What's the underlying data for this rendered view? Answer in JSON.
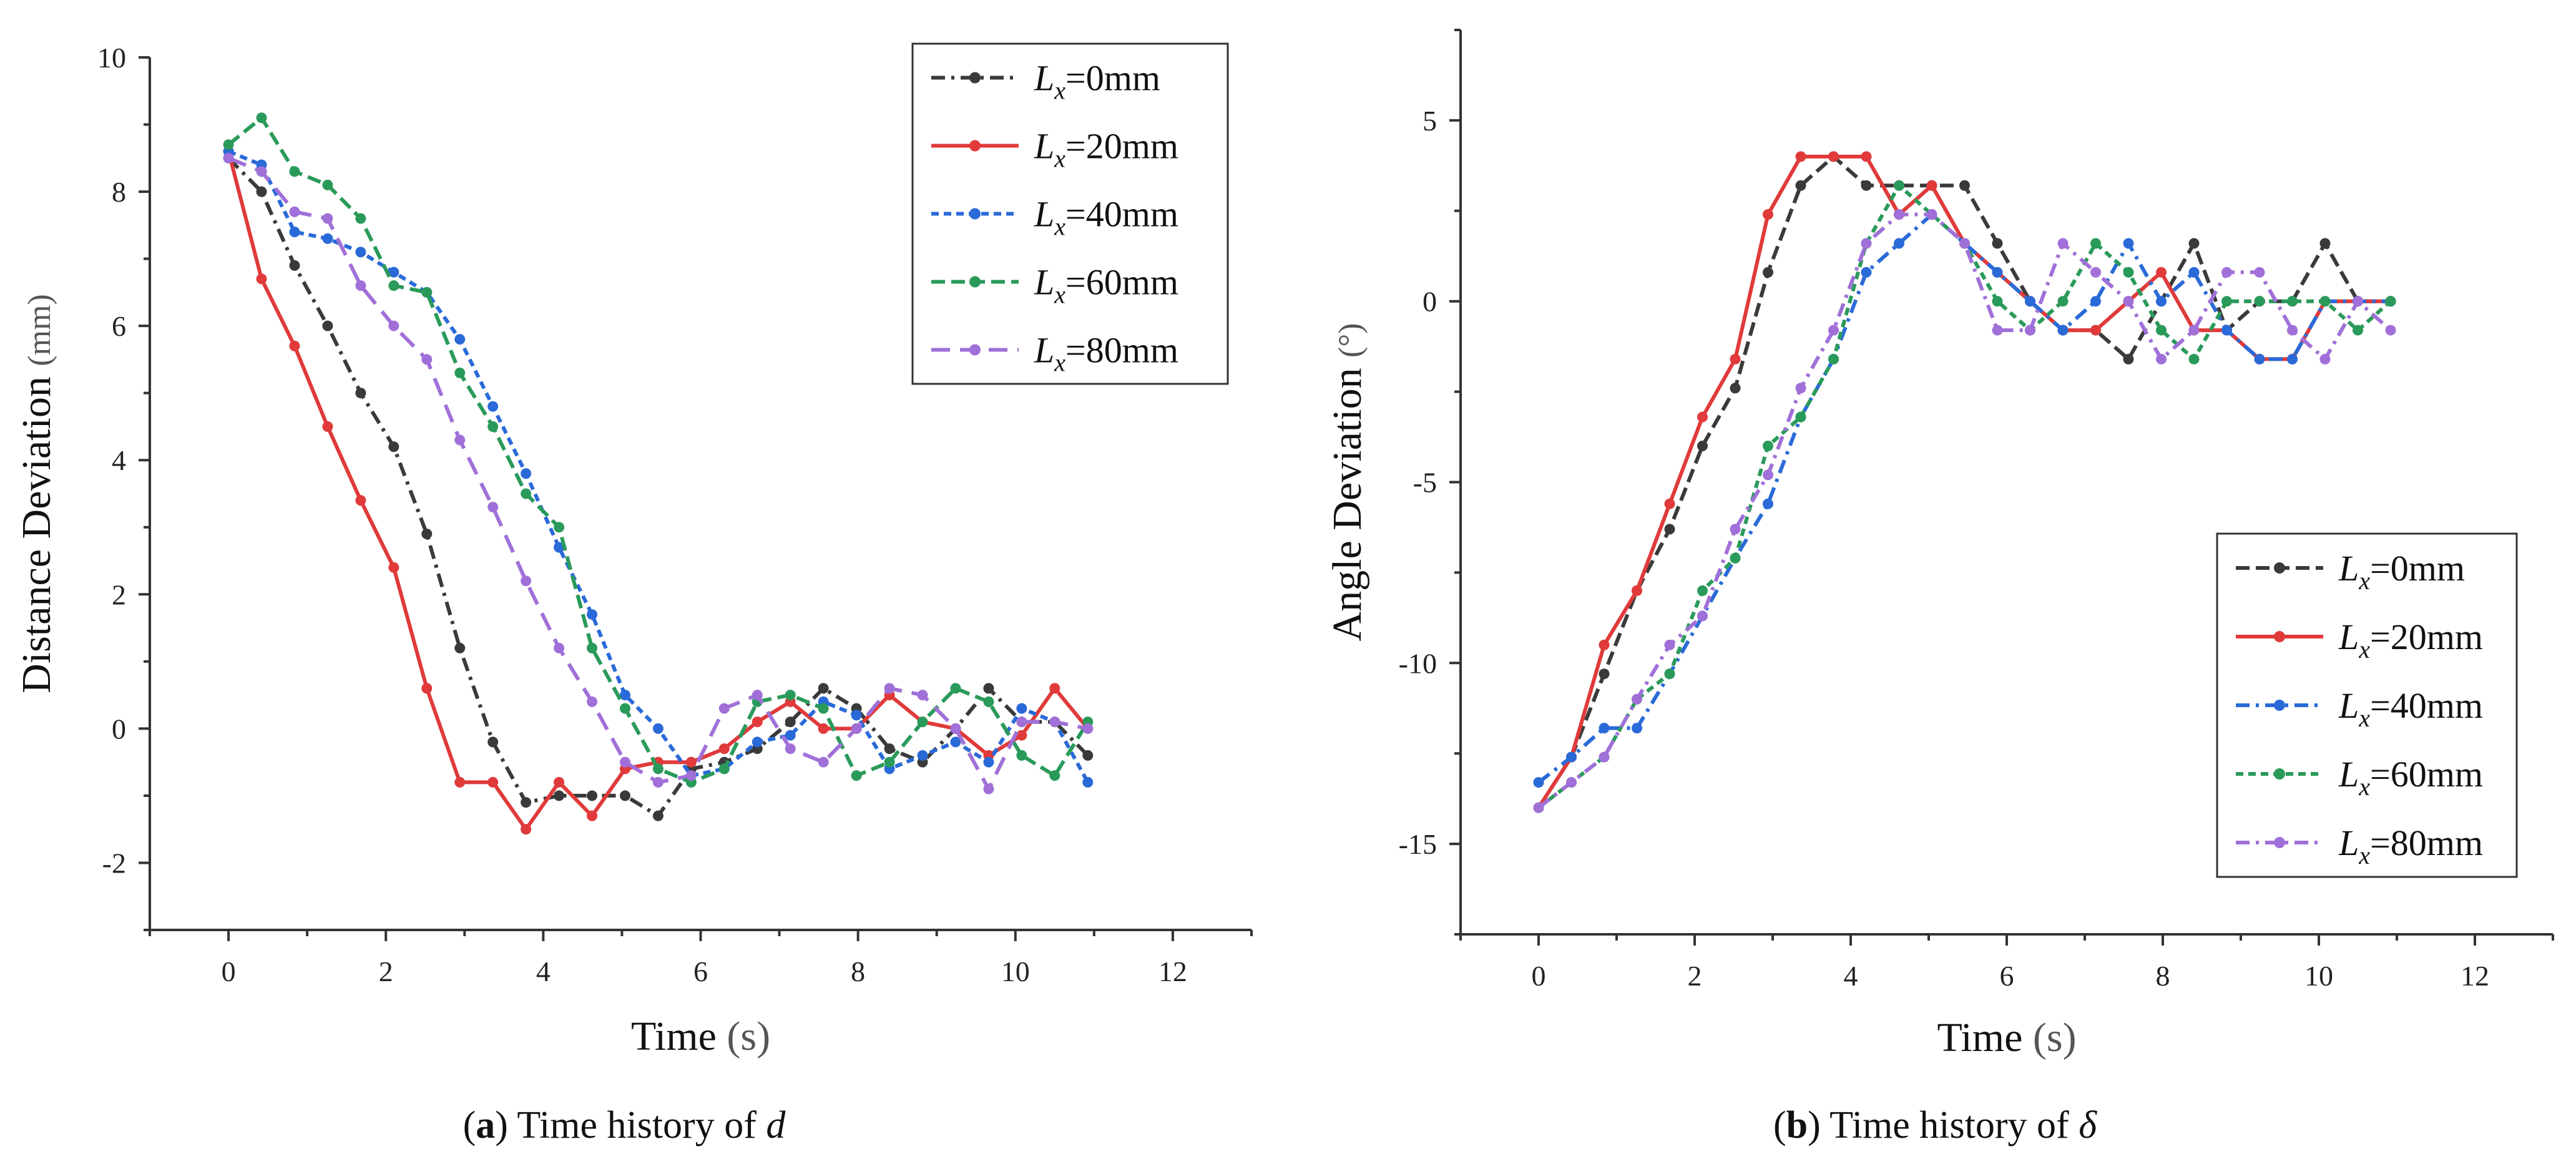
{
  "chart_data": [
    {
      "type": "line",
      "caption": {
        "letter": "a",
        "rest": " Time history of ",
        "symbol": "d"
      },
      "xlabel": "Time",
      "xunit": "(s)",
      "ylabel": "Distance Deviation",
      "yunit": "(mm)",
      "xlim": [
        -1,
        13
      ],
      "ylim": [
        -3,
        10
      ],
      "xticks": [
        0,
        2,
        4,
        6,
        8,
        10,
        12
      ],
      "yticks": [
        -2,
        0,
        2,
        4,
        6,
        8,
        10
      ],
      "legend": "top-right",
      "series": [
        {
          "name": "Lx=0mm",
          "sub": "x",
          "value_label": "=0mm",
          "color": "#3a3a3a",
          "dash": "22,10,5,10",
          "x": [
            0,
            0.42,
            0.84,
            1.26,
            1.68,
            2.1,
            2.52,
            2.94,
            3.36,
            3.78,
            4.2,
            4.62,
            5.04,
            5.46,
            5.88,
            6.3,
            6.72,
            7.14,
            7.56,
            7.98,
            8.4,
            8.82,
            9.24,
            9.66,
            10.08,
            10.5,
            10.92
          ],
          "y": [
            8.5,
            8.0,
            6.9,
            6.0,
            5.0,
            4.2,
            2.9,
            1.2,
            -0.2,
            -1.1,
            -1.0,
            -1.0,
            -1.0,
            -1.3,
            -0.6,
            -0.5,
            -0.3,
            0.1,
            0.6,
            0.3,
            -0.3,
            -0.5,
            0.0,
            0.6,
            0.1,
            0.1,
            -0.4
          ]
        },
        {
          "name": "Lx=20mm",
          "sub": "x",
          "value_label": "=20mm",
          "color": "#e03a3a",
          "dash": "",
          "x": [
            0,
            0.42,
            0.84,
            1.26,
            1.68,
            2.1,
            2.52,
            2.94,
            3.36,
            3.78,
            4.2,
            4.62,
            5.04,
            5.46,
            5.88,
            6.3,
            6.72,
            7.14,
            7.56,
            7.98,
            8.4,
            8.82,
            9.24,
            9.66,
            10.08,
            10.5,
            10.92
          ],
          "y": [
            8.6,
            6.7,
            5.7,
            4.5,
            3.4,
            2.4,
            0.6,
            -0.8,
            -0.8,
            -1.5,
            -0.8,
            -1.3,
            -0.6,
            -0.5,
            -0.5,
            -0.3,
            0.1,
            0.4,
            0.0,
            0.0,
            0.5,
            0.1,
            0.0,
            -0.4,
            -0.1,
            0.6,
            0.0
          ]
        },
        {
          "name": "Lx=40mm",
          "sub": "x",
          "value_label": "=40mm",
          "color": "#2a6ad8",
          "dash": "12,8",
          "x": [
            0,
            0.42,
            0.84,
            1.26,
            1.68,
            2.1,
            2.52,
            2.94,
            3.36,
            3.78,
            4.2,
            4.62,
            5.04,
            5.46,
            5.88,
            6.3,
            6.72,
            7.14,
            7.56,
            7.98,
            8.4,
            8.82,
            9.24,
            9.66,
            10.08,
            10.5,
            10.92
          ],
          "y": [
            8.6,
            8.4,
            7.4,
            7.3,
            7.1,
            6.8,
            6.5,
            5.8,
            4.8,
            3.8,
            2.7,
            1.7,
            0.5,
            0.0,
            -0.7,
            -0.6,
            -0.2,
            -0.1,
            0.4,
            0.2,
            -0.6,
            -0.4,
            -0.2,
            -0.5,
            0.3,
            0.1,
            -0.8
          ]
        },
        {
          "name": "Lx=60mm",
          "sub": "x",
          "value_label": "=60mm",
          "color": "#2a9a5a",
          "dash": "22,10",
          "x": [
            0,
            0.42,
            0.84,
            1.26,
            1.68,
            2.1,
            2.52,
            2.94,
            3.36,
            3.78,
            4.2,
            4.62,
            5.04,
            5.46,
            5.88,
            6.3,
            6.72,
            7.14,
            7.56,
            7.98,
            8.4,
            8.82,
            9.24,
            9.66,
            10.08,
            10.5,
            10.92
          ],
          "y": [
            8.7,
            9.1,
            8.3,
            8.1,
            7.6,
            6.6,
            6.5,
            5.3,
            4.5,
            3.5,
            3.0,
            1.2,
            0.3,
            -0.6,
            -0.8,
            -0.6,
            0.4,
            0.5,
            0.3,
            -0.7,
            -0.5,
            0.1,
            0.6,
            0.4,
            -0.4,
            -0.7,
            0.1
          ]
        },
        {
          "name": "Lx=80mm",
          "sub": "x",
          "value_label": "=80mm",
          "color": "#a070d8",
          "dash": "30,16",
          "x": [
            0,
            0.42,
            0.84,
            1.26,
            1.68,
            2.1,
            2.52,
            2.94,
            3.36,
            3.78,
            4.2,
            4.62,
            5.04,
            5.46,
            5.88,
            6.3,
            6.72,
            7.14,
            7.56,
            7.98,
            8.4,
            8.82,
            9.24,
            9.66,
            10.08,
            10.5,
            10.92
          ],
          "y": [
            8.5,
            8.3,
            7.7,
            7.6,
            6.6,
            6.0,
            5.5,
            4.3,
            3.3,
            2.2,
            1.2,
            0.4,
            -0.5,
            -0.8,
            -0.7,
            0.3,
            0.5,
            -0.3,
            -0.5,
            0.0,
            0.6,
            0.5,
            0.0,
            -0.9,
            0.1,
            0.1,
            0.0
          ]
        }
      ]
    },
    {
      "type": "line",
      "caption": {
        "letter": "b",
        "rest": " Time history of ",
        "symbol": "δ"
      },
      "xlabel": "Time",
      "xunit": "(s)",
      "ylabel": "Angle Deviation",
      "yunit": "(°)",
      "xlim": [
        -1,
        13
      ],
      "ylim": [
        -17.5,
        7.5
      ],
      "xticks": [
        0,
        2,
        4,
        6,
        8,
        10,
        12
      ],
      "yticks": [
        -15,
        -10,
        -5,
        0,
        5
      ],
      "legend": "bottom-right",
      "series": [
        {
          "name": "Lx=0mm",
          "sub": "x",
          "value_label": "=0mm",
          "color": "#3a3a3a",
          "dash": "22,10",
          "x": [
            0,
            0.42,
            0.84,
            1.26,
            1.68,
            2.1,
            2.52,
            2.94,
            3.36,
            3.78,
            4.2,
            4.62,
            5.04,
            5.46,
            5.88,
            6.3,
            6.72,
            7.14,
            7.56,
            7.98,
            8.4,
            8.82,
            9.24,
            9.66,
            10.08,
            10.5,
            10.92
          ],
          "y": [
            -14.0,
            -12.6,
            -10.3,
            -8.0,
            -6.3,
            -4.0,
            -2.4,
            0.8,
            3.2,
            4.0,
            3.2,
            3.2,
            3.2,
            3.2,
            1.6,
            0.0,
            -0.8,
            -0.8,
            -1.6,
            0.0,
            1.6,
            -0.8,
            0.0,
            0.0,
            1.6,
            0.0,
            0.0
          ]
        },
        {
          "name": "Lx=20mm",
          "sub": "x",
          "value_label": "=20mm",
          "color": "#e03a3a",
          "dash": "",
          "x": [
            0,
            0.42,
            0.84,
            1.26,
            1.68,
            2.1,
            2.52,
            2.94,
            3.36,
            3.78,
            4.2,
            4.62,
            5.04,
            5.46,
            5.88,
            6.3,
            6.72,
            7.14,
            7.56,
            7.98,
            8.4,
            8.82,
            9.24,
            9.66,
            10.08,
            10.5,
            10.92
          ],
          "y": [
            -14.0,
            -12.6,
            -9.5,
            -8.0,
            -5.6,
            -3.2,
            -1.6,
            2.4,
            4.0,
            4.0,
            4.0,
            2.4,
            3.2,
            1.6,
            0.8,
            0.0,
            -0.8,
            -0.8,
            0.0,
            0.8,
            -0.8,
            -0.8,
            -1.6,
            -1.6,
            0.0,
            0.0,
            0.0
          ]
        },
        {
          "name": "Lx=40mm",
          "sub": "x",
          "value_label": "=40mm",
          "color": "#2a6ad8",
          "dash": "22,10,5,10",
          "x": [
            0,
            0.42,
            0.84,
            1.26,
            1.68,
            2.1,
            2.52,
            2.94,
            3.36,
            3.78,
            4.2,
            4.62,
            5.04,
            5.46,
            5.88,
            6.3,
            6.72,
            7.14,
            7.56,
            7.98,
            8.4,
            8.82,
            9.24,
            9.66,
            10.08,
            10.5,
            10.92
          ],
          "y": [
            -13.3,
            -12.6,
            -11.8,
            -11.8,
            -10.3,
            -8.7,
            -7.1,
            -5.6,
            -3.2,
            -1.6,
            0.8,
            1.6,
            2.4,
            1.6,
            0.8,
            0.0,
            -0.8,
            0.0,
            1.6,
            0.0,
            0.8,
            -0.8,
            -1.6,
            -1.6,
            0.0,
            0.0,
            0.0
          ]
        },
        {
          "name": "Lx=60mm",
          "sub": "x",
          "value_label": "=60mm",
          "color": "#2a9a5a",
          "dash": "12,8",
          "x": [
            0,
            0.42,
            0.84,
            1.26,
            1.68,
            2.1,
            2.52,
            2.94,
            3.36,
            3.78,
            4.2,
            4.62,
            5.04,
            5.46,
            5.88,
            6.3,
            6.72,
            7.14,
            7.56,
            7.98,
            8.4,
            8.82,
            9.24,
            9.66,
            10.08,
            10.5,
            10.92
          ],
          "y": [
            -14.0,
            -13.3,
            -12.6,
            -11.0,
            -10.3,
            -8.0,
            -7.1,
            -4.0,
            -3.2,
            -1.6,
            1.6,
            3.2,
            2.4,
            1.6,
            0.0,
            -0.8,
            0.0,
            1.6,
            0.8,
            -0.8,
            -1.6,
            0.0,
            0.0,
            0.0,
            0.0,
            -0.8,
            0.0
          ]
        },
        {
          "name": "Lx=80mm",
          "sub": "x",
          "value_label": "=80mm",
          "color": "#a070d8",
          "dash": "22,10,5,10",
          "x": [
            0,
            0.42,
            0.84,
            1.26,
            1.68,
            2.1,
            2.52,
            2.94,
            3.36,
            3.78,
            4.2,
            4.62,
            5.04,
            5.46,
            5.88,
            6.3,
            6.72,
            7.14,
            7.56,
            7.98,
            8.4,
            8.82,
            9.24,
            9.66,
            10.08,
            10.5,
            10.92
          ],
          "y": [
            -14.0,
            -13.3,
            -12.6,
            -11.0,
            -9.5,
            -8.7,
            -6.3,
            -4.8,
            -2.4,
            -0.8,
            1.6,
            2.4,
            2.4,
            1.6,
            -0.8,
            -0.8,
            1.6,
            0.8,
            0.0,
            -1.6,
            -0.8,
            0.8,
            0.8,
            -0.8,
            -1.6,
            0.0,
            -0.8
          ]
        }
      ]
    }
  ]
}
